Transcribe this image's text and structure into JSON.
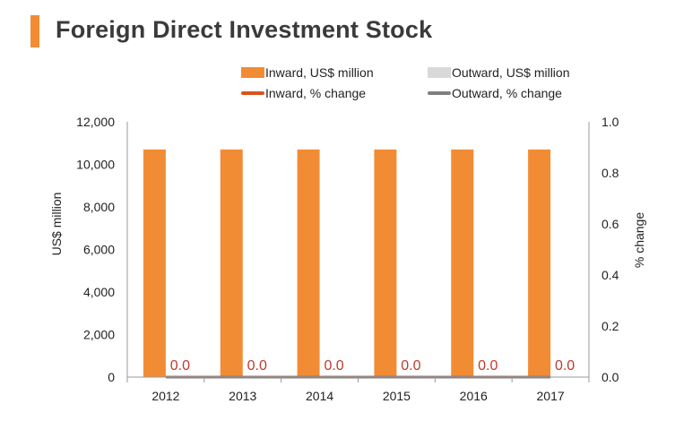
{
  "title": "Foreign Direct Investment Stock",
  "colors": {
    "accent": "#f28c34",
    "inward_bar": "#f28c34",
    "outward_bar": "#d9d9d9",
    "inward_line": "#d9531e",
    "outward_line": "#7f7f7f",
    "data_label": "#c0392b"
  },
  "legend": [
    {
      "label": "Inward, US$ million",
      "kind": "bar",
      "color": "#f28c34"
    },
    {
      "label": "Outward, US$ million",
      "kind": "bar",
      "color": "#d9d9d9"
    },
    {
      "label": "Inward, % change",
      "kind": "line",
      "color": "#d9531e"
    },
    {
      "label": "Outward, % change",
      "kind": "line",
      "color": "#7f7f7f"
    }
  ],
  "chart_data": {
    "type": "bar",
    "categories": [
      "2012",
      "2013",
      "2014",
      "2015",
      "2016",
      "2017"
    ],
    "series": [
      {
        "name": "Inward, US$ million",
        "type": "bar",
        "axis": "left",
        "values": [
          10700,
          10700,
          10700,
          10700,
          10700,
          10700
        ]
      },
      {
        "name": "Outward, US$ million",
        "type": "bar",
        "axis": "left",
        "values": [
          0,
          0,
          0,
          0,
          0,
          0
        ]
      },
      {
        "name": "Inward, % change",
        "type": "line",
        "axis": "right",
        "values": [
          0.0,
          0.0,
          0.0,
          0.0,
          0.0,
          0.0
        ]
      },
      {
        "name": "Outward, % change",
        "type": "line",
        "axis": "right",
        "values": [
          0.0,
          0.0,
          0.0,
          0.0,
          0.0,
          0.0
        ]
      }
    ],
    "data_labels": [
      "0.0",
      "0.0",
      "0.0",
      "0.0",
      "0.0",
      "0.0"
    ],
    "ylabel": "US$ million",
    "y2label": "% change",
    "ylim": [
      0,
      12000
    ],
    "y2lim": [
      0,
      1.0
    ],
    "yticks": [
      "0",
      "2,000",
      "4,000",
      "6,000",
      "8,000",
      "10,000",
      "12,000"
    ],
    "y2ticks": [
      "0.0",
      "0.2",
      "0.4",
      "0.6",
      "0.8",
      "1.0"
    ],
    "grid": false,
    "legend_position": "top"
  }
}
